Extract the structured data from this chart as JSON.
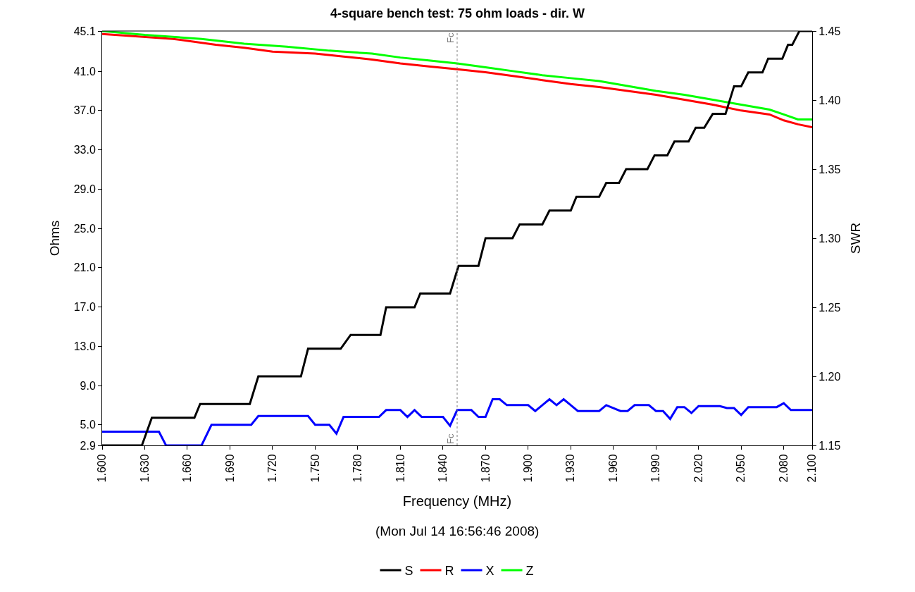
{
  "chart_data": {
    "type": "line",
    "title": "4-square bench test: 75 ohm loads - dir. W",
    "xlabel": "Frequency (MHz)",
    "ylabel": "Ohms",
    "y2label": "SWR",
    "annotations": [
      "(Mon Jul 14 16:56:46 2008)"
    ],
    "series": [
      {
        "name": "S",
        "color": "#000000",
        "axis": "y2",
        "x": [
          1.6,
          1.628,
          1.635,
          1.665,
          1.669,
          1.704,
          1.71,
          1.74,
          1.745,
          1.768,
          1.775,
          1.796,
          1.8,
          1.82,
          1.824,
          1.845,
          1.851,
          1.865,
          1.87,
          1.889,
          1.894,
          1.91,
          1.915,
          1.93,
          1.934,
          1.95,
          1.955,
          1.964,
          1.969,
          1.984,
          1.989,
          1.998,
          2.003,
          2.013,
          2.018,
          2.024,
          2.03,
          2.039,
          2.045,
          2.05,
          2.055,
          2.065,
          2.069,
          2.079,
          2.083,
          2.086,
          2.091,
          2.1
        ],
        "values": [
          1.15,
          1.15,
          1.17,
          1.17,
          1.18,
          1.18,
          1.2,
          1.2,
          1.22,
          1.22,
          1.23,
          1.23,
          1.25,
          1.25,
          1.26,
          1.26,
          1.28,
          1.28,
          1.3,
          1.3,
          1.31,
          1.31,
          1.32,
          1.32,
          1.33,
          1.33,
          1.34,
          1.34,
          1.35,
          1.35,
          1.36,
          1.36,
          1.37,
          1.37,
          1.38,
          1.38,
          1.39,
          1.39,
          1.41,
          1.41,
          1.42,
          1.42,
          1.43,
          1.43,
          1.44,
          1.44,
          1.45,
          1.45
        ]
      },
      {
        "name": "R",
        "color": "#ff0000",
        "x": [
          1.6,
          1.62,
          1.65,
          1.68,
          1.7,
          1.72,
          1.75,
          1.77,
          1.79,
          1.81,
          1.83,
          1.85,
          1.87,
          1.89,
          1.91,
          1.93,
          1.95,
          1.97,
          1.99,
          2.01,
          2.03,
          2.05,
          2.07,
          2.08,
          2.09,
          2.1
        ],
        "values": [
          44.8,
          44.6,
          44.3,
          43.7,
          43.4,
          43.0,
          42.8,
          42.5,
          42.2,
          41.8,
          41.5,
          41.2,
          40.9,
          40.5,
          40.1,
          39.7,
          39.4,
          39.0,
          38.6,
          38.1,
          37.6,
          37.0,
          36.6,
          36.0,
          35.6,
          35.3
        ]
      },
      {
        "name": "X",
        "color": "#0000ff",
        "x": [
          1.6,
          1.64,
          1.645,
          1.67,
          1.677,
          1.705,
          1.71,
          1.745,
          1.75,
          1.76,
          1.765,
          1.77,
          1.795,
          1.8,
          1.81,
          1.815,
          1.82,
          1.825,
          1.84,
          1.845,
          1.85,
          1.86,
          1.865,
          1.87,
          1.875,
          1.88,
          1.885,
          1.9,
          1.905,
          1.91,
          1.915,
          1.92,
          1.925,
          1.93,
          1.935,
          1.95,
          1.955,
          1.965,
          1.97,
          1.975,
          1.985,
          1.99,
          1.995,
          2.0,
          2.005,
          2.01,
          2.015,
          2.02,
          2.035,
          2.04,
          2.045,
          2.05,
          2.055,
          2.075,
          2.08,
          2.085,
          2.1
        ],
        "values": [
          4.3,
          4.3,
          2.9,
          2.9,
          5.0,
          5.0,
          5.9,
          5.9,
          5.0,
          5.0,
          4.1,
          5.8,
          5.8,
          6.5,
          6.5,
          5.8,
          6.5,
          5.8,
          5.8,
          4.9,
          6.5,
          6.5,
          5.8,
          5.8,
          7.6,
          7.6,
          7.0,
          7.0,
          6.4,
          7.0,
          7.6,
          7.0,
          7.6,
          7.0,
          6.4,
          6.4,
          7.0,
          6.4,
          6.4,
          7.0,
          7.0,
          6.4,
          6.4,
          5.6,
          6.8,
          6.8,
          6.2,
          6.9,
          6.9,
          6.7,
          6.7,
          6.0,
          6.8,
          6.8,
          7.2,
          6.5,
          6.5
        ]
      },
      {
        "name": "Z",
        "color": "#00ff00",
        "x": [
          1.6,
          1.63,
          1.67,
          1.7,
          1.73,
          1.76,
          1.79,
          1.81,
          1.83,
          1.85,
          1.87,
          1.89,
          1.91,
          1.93,
          1.95,
          1.97,
          1.99,
          2.01,
          2.03,
          2.05,
          2.07,
          2.08,
          2.09,
          2.1
        ],
        "values": [
          45.1,
          44.7,
          44.3,
          43.8,
          43.5,
          43.1,
          42.8,
          42.4,
          42.1,
          41.8,
          41.4,
          41.0,
          40.6,
          40.3,
          40.0,
          39.5,
          39.0,
          38.6,
          38.1,
          37.6,
          37.1,
          36.6,
          36.1,
          36.1
        ]
      }
    ],
    "xlim": [
      1.6,
      2.1
    ],
    "xticks": [
      {
        "value": 1.6,
        "label": "1.600"
      },
      {
        "value": 1.63,
        "label": "1.630"
      },
      {
        "value": 1.66,
        "label": "1.660"
      },
      {
        "value": 1.69,
        "label": "1.690"
      },
      {
        "value": 1.72,
        "label": "1.720"
      },
      {
        "value": 1.75,
        "label": "1.750"
      },
      {
        "value": 1.78,
        "label": "1.780"
      },
      {
        "value": 1.81,
        "label": "1.810"
      },
      {
        "value": 1.84,
        "label": "1.840"
      },
      {
        "value": 1.87,
        "label": "1.870"
      },
      {
        "value": 1.9,
        "label": "1.900"
      },
      {
        "value": 1.93,
        "label": "1.930"
      },
      {
        "value": 1.96,
        "label": "1.960"
      },
      {
        "value": 1.99,
        "label": "1.990"
      },
      {
        "value": 2.02,
        "label": "2.020"
      },
      {
        "value": 2.05,
        "label": "2.050"
      },
      {
        "value": 2.08,
        "label": "2.080"
      },
      {
        "value": 2.1,
        "label": "2.100"
      }
    ],
    "ylim": [
      2.9,
      45.1
    ],
    "yticks": [
      2.9,
      {
        "value": 5,
        "label": "5.0"
      },
      {
        "value": 9,
        "label": "9.0"
      },
      {
        "value": 13,
        "label": "13.0"
      },
      {
        "value": 17,
        "label": "17.0"
      },
      {
        "value": 21,
        "label": "21.0"
      },
      {
        "value": 25,
        "label": "25.0"
      },
      {
        "value": 29,
        "label": "29.0"
      },
      {
        "value": 33,
        "label": "33.0"
      },
      {
        "value": 37,
        "label": "37.0"
      },
      {
        "value": 41,
        "label": "41.0"
      },
      45.1
    ],
    "y2lim": [
      1.15,
      1.45
    ],
    "y2ticks": [
      1.15,
      {
        "value": 1.2,
        "label": "1.20"
      },
      1.25,
      {
        "value": 1.3,
        "label": "1.30"
      },
      1.35,
      {
        "value": 1.4,
        "label": "1.40"
      },
      1.45
    ],
    "ref_lines": [
      {
        "axis": "x",
        "value": 1.85,
        "label": "Fc",
        "color": "#808080",
        "line_style": "dotted"
      }
    ],
    "legend": "bottom",
    "marker": "none",
    "line_style": "solid"
  }
}
